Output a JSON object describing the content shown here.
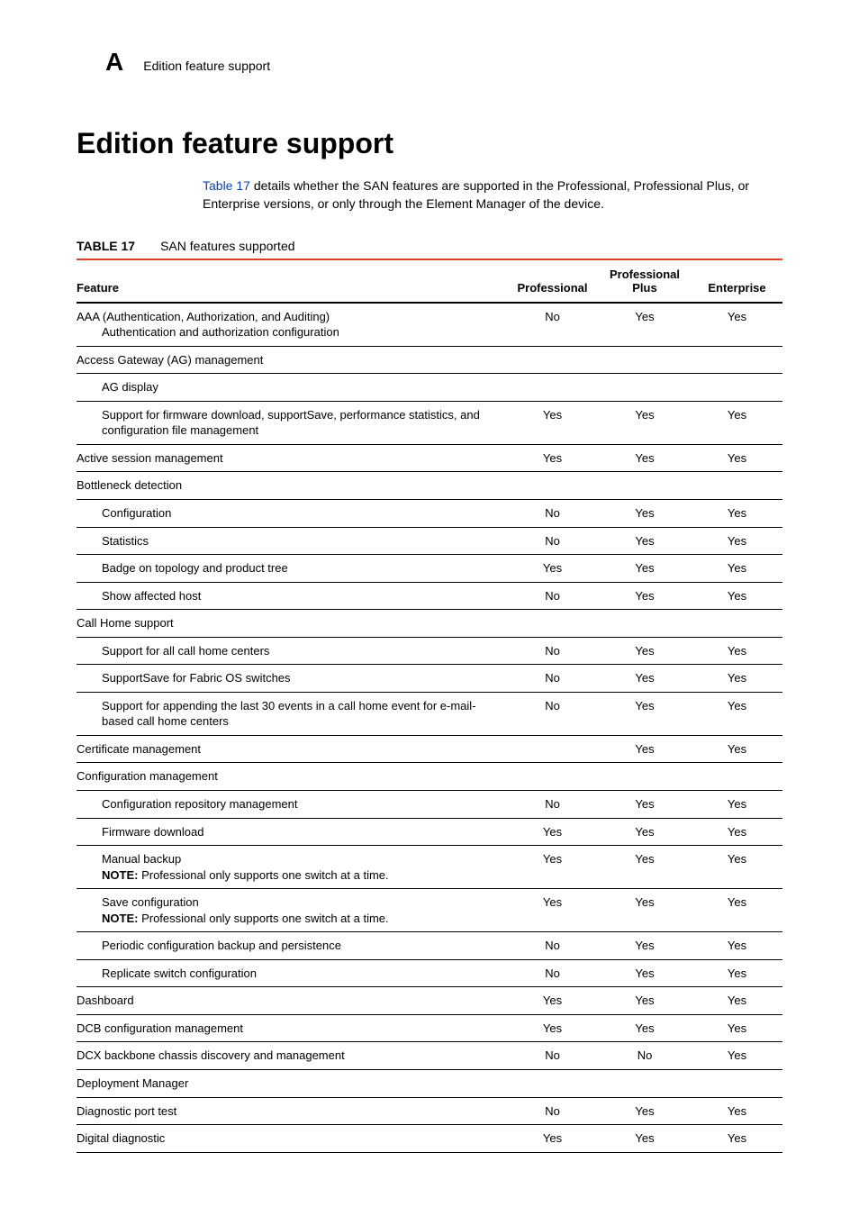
{
  "header": {
    "appendix_letter": "A",
    "running_title": "Edition feature support"
  },
  "title": "Edition feature support",
  "intro": {
    "table_ref": "Table 17",
    "text_after": " details whether the SAN features are supported in the Professional, Professional Plus, or Enterprise versions, or only through the Element Manager of the device."
  },
  "table": {
    "caption_label": "TABLE 17",
    "caption_text": "SAN features supported",
    "columns": {
      "feature": "Feature",
      "professional": "Professional",
      "professional_plus": "Professional Plus",
      "enterprise": "Enterprise"
    },
    "rows": [
      {
        "feature": "AAA (Authentication, Authorization, and Auditing)",
        "sub": "Authentication and authorization configuration",
        "indent": 0,
        "prof": "No",
        "plus": "Yes",
        "ent": "Yes"
      },
      {
        "feature": "Access Gateway (AG) management",
        "indent": 0,
        "prof": "",
        "plus": "",
        "ent": ""
      },
      {
        "feature": "AG display",
        "indent": 1,
        "prof": "",
        "plus": "",
        "ent": ""
      },
      {
        "feature": "Support for firmware download, supportSave, performance statistics, and configuration file management",
        "indent": 1,
        "prof": "Yes",
        "plus": "Yes",
        "ent": "Yes"
      },
      {
        "feature": "Active session management",
        "indent": 0,
        "prof": "Yes",
        "plus": "Yes",
        "ent": "Yes"
      },
      {
        "feature": "Bottleneck detection",
        "indent": 0,
        "prof": "",
        "plus": "",
        "ent": ""
      },
      {
        "feature": "Configuration",
        "indent": 1,
        "prof": "No",
        "plus": "Yes",
        "ent": "Yes"
      },
      {
        "feature": "Statistics",
        "indent": 1,
        "prof": "No",
        "plus": "Yes",
        "ent": "Yes"
      },
      {
        "feature": "Badge on topology and product tree",
        "indent": 1,
        "prof": "Yes",
        "plus": "Yes",
        "ent": "Yes"
      },
      {
        "feature": "Show affected host",
        "indent": 1,
        "prof": "No",
        "plus": "Yes",
        "ent": "Yes"
      },
      {
        "feature": "Call Home support",
        "indent": 0,
        "prof": "",
        "plus": "",
        "ent": ""
      },
      {
        "feature": "Support for all call home centers",
        "indent": 1,
        "prof": "No",
        "plus": "Yes",
        "ent": "Yes"
      },
      {
        "feature": "SupportSave for Fabric OS switches",
        "indent": 1,
        "prof": "No",
        "plus": "Yes",
        "ent": "Yes"
      },
      {
        "feature": "Support for appending the last 30 events in a call home event for e-mail-based call home centers",
        "indent": 1,
        "prof": "No",
        "plus": "Yes",
        "ent": "Yes"
      },
      {
        "feature": "Certificate management",
        "indent": 0,
        "prof": "",
        "plus": "Yes",
        "ent": "Yes"
      },
      {
        "feature": "Configuration management",
        "indent": 0,
        "prof": "",
        "plus": "",
        "ent": ""
      },
      {
        "feature": "Configuration repository management",
        "indent": 1,
        "prof": "No",
        "plus": "Yes",
        "ent": "Yes"
      },
      {
        "feature": "Firmware download",
        "indent": 1,
        "prof": "Yes",
        "plus": "Yes",
        "ent": "Yes"
      },
      {
        "feature": "Manual backup",
        "note_label": "NOTE: ",
        "note_text": "Professional only supports one switch at a time.",
        "indent": 1,
        "prof": "Yes",
        "plus": "Yes",
        "ent": "Yes"
      },
      {
        "feature": "Save configuration",
        "note_label": "NOTE: ",
        "note_text": "Professional only supports one switch at a time.",
        "indent": 1,
        "prof": "Yes",
        "plus": "Yes",
        "ent": "Yes"
      },
      {
        "feature": "Periodic configuration backup and persistence",
        "indent": 1,
        "prof": "No",
        "plus": "Yes",
        "ent": "Yes"
      },
      {
        "feature": "Replicate switch configuration",
        "indent": 1,
        "prof": "No",
        "plus": "Yes",
        "ent": "Yes"
      },
      {
        "feature": "Dashboard",
        "indent": 0,
        "prof": "Yes",
        "plus": "Yes",
        "ent": "Yes"
      },
      {
        "feature": "DCB configuration management",
        "indent": 0,
        "prof": "Yes",
        "plus": "Yes",
        "ent": "Yes"
      },
      {
        "feature": "DCX backbone chassis discovery and management",
        "indent": 0,
        "prof": "No",
        "plus": "No",
        "ent": "Yes"
      },
      {
        "feature": "Deployment Manager",
        "indent": 0,
        "prof": "",
        "plus": "",
        "ent": ""
      },
      {
        "feature": "Diagnostic port test",
        "indent": 0,
        "prof": "No",
        "plus": "Yes",
        "ent": "Yes"
      },
      {
        "feature": "Digital diagnostic",
        "indent": 0,
        "prof": "Yes",
        "plus": "Yes",
        "ent": "Yes"
      }
    ]
  },
  "colors": {
    "rule_top": "#d93f2b",
    "link": "#0645ad"
  }
}
